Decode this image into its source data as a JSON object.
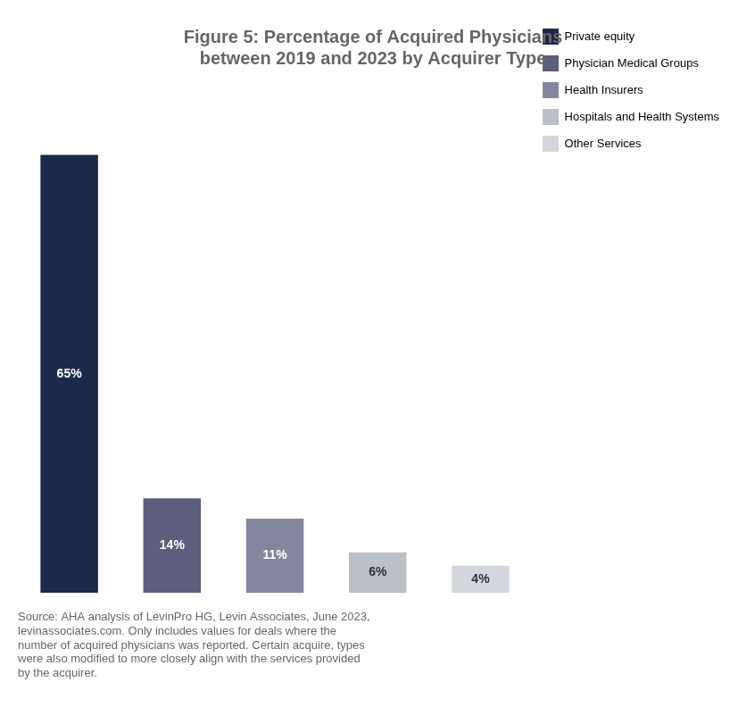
{
  "chart_data": {
    "type": "bar",
    "title": "Figure 5: Percentage of Acquired Physicians\nbetween 2019 and 2023 by Acquirer Type",
    "categories": [
      "Private equity",
      "Physician Medical Groups",
      "Health Insurers",
      "Hospitals and Health Systems",
      "Other Services"
    ],
    "values": [
      65,
      14,
      11,
      6,
      4
    ],
    "value_labels": [
      "65%",
      "14%",
      "11%",
      "6%",
      "4%"
    ],
    "colors": [
      "#1b2a4a",
      "#5a5f7d",
      "#8287a0",
      "#bbbfc8",
      "#d4d6de"
    ],
    "ylim": [
      0,
      75
    ],
    "data_labels": true,
    "tick_labels": false,
    "grid": false,
    "legend": "upper right",
    "annotations": [
      "Source: AHA analysis of LevinPro HG, Levin Associates, June 2023,\nlevinassociates.com. Only includes values for deals where the\nnumber of acquired physicians was reported. Certain acquire, types\nwere also modified to more closely align with the services provided\nby the acquirer."
    ]
  }
}
